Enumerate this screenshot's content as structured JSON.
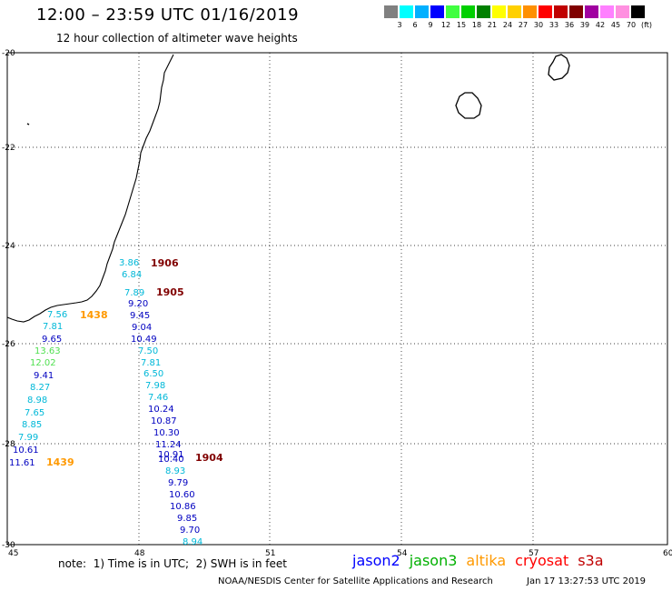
{
  "header": {
    "title": "12:00 – 23:59 UTC 01/16/2019",
    "subtitle": "12 hour collection of altimeter wave heights"
  },
  "color_scale": {
    "colors": [
      "#808080",
      "#00ffff",
      "#00b0ff",
      "#0000ff",
      "#40ff40",
      "#00d000",
      "#008000",
      "#ffff00",
      "#ffd000",
      "#ff9000",
      "#ff0000",
      "#c00000",
      "#800000",
      "#a000a0",
      "#ff80ff",
      "#ff90e0",
      "#000000"
    ],
    "ticks": [
      "3",
      "6",
      "9",
      "12",
      "15",
      "18",
      "21",
      "24",
      "27",
      "30",
      "33",
      "36",
      "39",
      "42",
      "45",
      "70",
      "(ft)"
    ]
  },
  "axes": {
    "x_ticks": [
      "45",
      "48",
      "51",
      "54",
      "57",
      "60"
    ],
    "y_ticks": [
      "-20",
      "-22",
      "-24",
      "-26",
      "-28",
      "-30"
    ]
  },
  "passes": [
    {
      "time": "1906",
      "color": "#800000"
    },
    {
      "time": "1905",
      "color": "#800000"
    },
    {
      "time": "1438",
      "color": "#ff9900"
    },
    {
      "time": "1439",
      "color": "#ff9900"
    },
    {
      "time": "1904",
      "color": "#800000"
    }
  ],
  "observations": [
    {
      "value": "3.86",
      "color": "#00b8d8"
    },
    {
      "value": "6.84",
      "color": "#00b8d8"
    },
    {
      "value": "7.89",
      "color": "#00b8d8"
    },
    {
      "value": "9.20",
      "color": "#0000c0"
    },
    {
      "value": "9.45",
      "color": "#0000c0"
    },
    {
      "value": "9.04",
      "color": "#0000c0"
    },
    {
      "value": "10.49",
      "color": "#0000c0"
    },
    {
      "value": "7.50",
      "color": "#00b8d8"
    },
    {
      "value": "7.81",
      "color": "#00b8d8"
    },
    {
      "value": "6.50",
      "color": "#00b8d8"
    },
    {
      "value": "7.98",
      "color": "#00b8d8"
    },
    {
      "value": "7.46",
      "color": "#00b8d8"
    },
    {
      "value": "10.24",
      "color": "#0000c0"
    },
    {
      "value": "10.87",
      "color": "#0000c0"
    },
    {
      "value": "10.30",
      "color": "#0000c0"
    },
    {
      "value": "11.24",
      "color": "#0000c0"
    },
    {
      "value": "10.91",
      "color": "#0000c0"
    },
    {
      "value": "10.40",
      "color": "#0000c0"
    },
    {
      "value": "8.93",
      "color": "#00b8d8"
    },
    {
      "value": "9.79",
      "color": "#0000c0"
    },
    {
      "value": "10.60",
      "color": "#0000c0"
    },
    {
      "value": "10.86",
      "color": "#0000c0"
    },
    {
      "value": "9.85",
      "color": "#0000c0"
    },
    {
      "value": "9.70",
      "color": "#0000c0"
    },
    {
      "value": "8.94",
      "color": "#00b8d8"
    },
    {
      "value": "7.56",
      "color": "#00b8d8"
    },
    {
      "value": "7.81",
      "color": "#00b8d8"
    },
    {
      "value": "9.65",
      "color": "#0000c0"
    },
    {
      "value": "13.63",
      "color": "#50e050"
    },
    {
      "value": "12.02",
      "color": "#50e050"
    },
    {
      "value": "9.41",
      "color": "#0000c0"
    },
    {
      "value": "8.27",
      "color": "#00b8d8"
    },
    {
      "value": "8.98",
      "color": "#00b8d8"
    },
    {
      "value": "7.65",
      "color": "#00b8d8"
    },
    {
      "value": "8.85",
      "color": "#00b8d8"
    },
    {
      "value": "7.99",
      "color": "#00b8d8"
    },
    {
      "value": "10.61",
      "color": "#0000c0"
    },
    {
      "value": "11.61",
      "color": "#0000c0"
    }
  ],
  "footer": {
    "note": "note:  1) Time is in UTC;  2) SWH is in feet",
    "legend": [
      {
        "label": "jason2",
        "color": "#0000ff"
      },
      {
        "label": "jason3",
        "color": "#00b000"
      },
      {
        "label": "altika",
        "color": "#ff9900"
      },
      {
        "label": "cryosat",
        "color": "#ff0000"
      },
      {
        "label": "s3a",
        "color": "#c00000"
      }
    ],
    "credit": "NOAA/NESDIS Center for Satellite Applications and Research",
    "timestamp": "Jan 17 13:27:53 UTC 2019"
  }
}
